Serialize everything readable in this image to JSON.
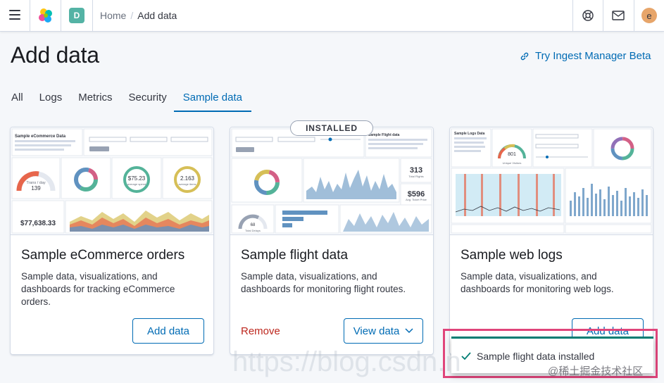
{
  "header": {
    "space_initial": "D",
    "breadcrumbs": [
      "Home",
      "Add data"
    ],
    "user_initial": "e"
  },
  "page": {
    "title": "Add data",
    "ingest_link": "Try Ingest Manager Beta"
  },
  "tabs": [
    {
      "label": "All",
      "selected": false
    },
    {
      "label": "Logs",
      "selected": false
    },
    {
      "label": "Metrics",
      "selected": false
    },
    {
      "label": "Security",
      "selected": false
    },
    {
      "label": "Sample data",
      "selected": true
    }
  ],
  "cards": [
    {
      "title": "Sample eCommerce orders",
      "description": "Sample data, visualizations, and dashboards for tracking eCommerce orders.",
      "primary_button": "Add data",
      "thumb": {
        "dashboard_title": "Sample eCommerce Data",
        "gauge_label": "Trans / day",
        "gauge_value": "139",
        "donut1_value": "$75.23",
        "donut1_caption": "average spend",
        "donut2_value": "2.163",
        "donut2_caption": "average items",
        "total_value": "$77,638.33"
      }
    },
    {
      "title": "Sample flight data",
      "description": "Sample data, visualizations, and dashboards for monitoring flight routes.",
      "badge": "INSTALLED",
      "remove_label": "Remove",
      "primary_button": "View data",
      "thumb": {
        "dashboard_title": "Sample Flight data",
        "metric1_value": "313",
        "metric1_label": "Total Flights",
        "metric2_value": "$596",
        "metric2_label": "Avg. Ticket Price",
        "gauge_value": "68",
        "gauge_label": "Total Delays"
      }
    },
    {
      "title": "Sample web logs",
      "description": "Sample data, visualizations, and dashboards for monitoring web logs.",
      "primary_button": "Add data",
      "thumb": {
        "dashboard_title": "Sample Logs Data",
        "gauge_value": "801",
        "gauge_label": "Unique Visitors"
      }
    }
  ],
  "toast": {
    "message": "Sample flight data installed"
  },
  "overlays": {
    "watermark": "https://blog.csdn.n",
    "community": "@稀土掘金技术社区"
  },
  "colors": {
    "primary": "#006bb4",
    "danger": "#bd271e",
    "success": "#017d73",
    "highlight": "#e0457b"
  }
}
